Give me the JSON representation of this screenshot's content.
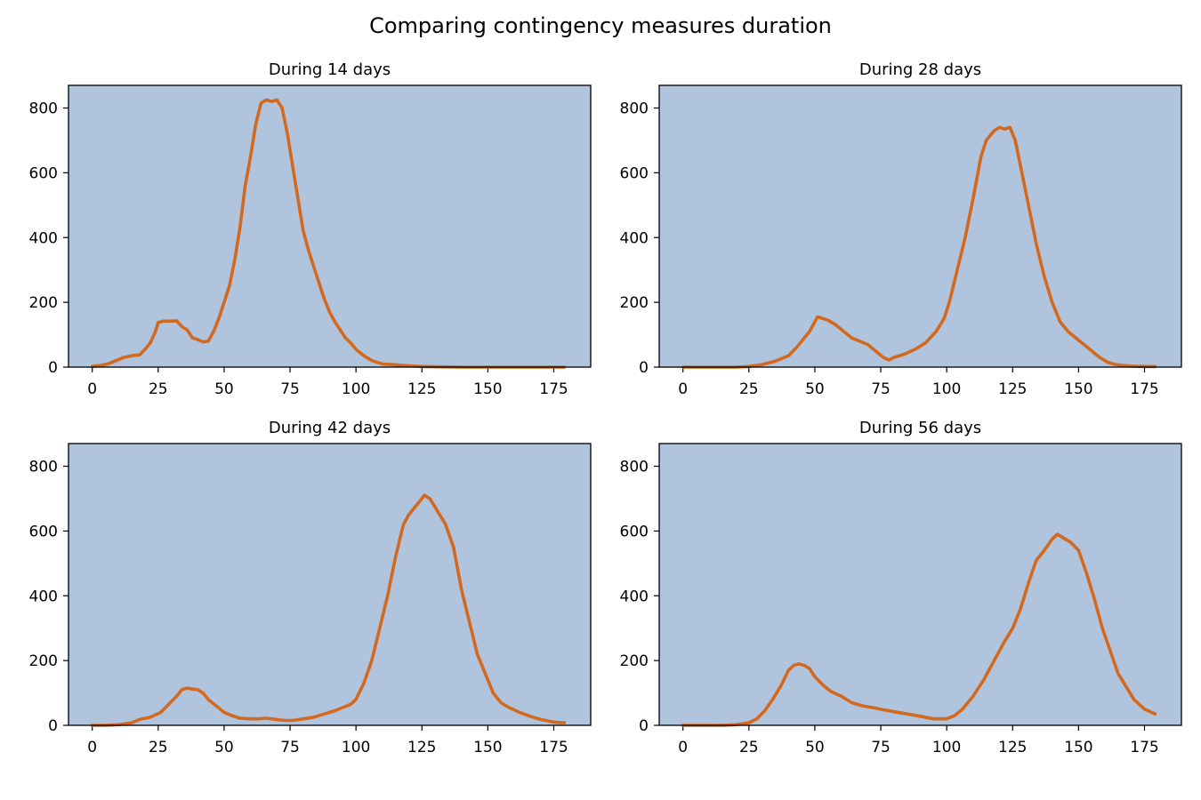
{
  "figure": {
    "title": "Comparing contingency measures duration",
    "plot_background": "#b0c4de",
    "line_color": "#d2691e"
  },
  "chart_data": [
    {
      "type": "line",
      "title": "During 14 days",
      "xlabel": "",
      "ylabel": "",
      "xlim": [
        -9,
        189
      ],
      "ylim": [
        0,
        870
      ],
      "xticks": [
        0,
        25,
        50,
        75,
        100,
        125,
        150,
        175
      ],
      "yticks": [
        0,
        200,
        400,
        600,
        800
      ],
      "grid": false,
      "x": [
        0,
        3,
        6,
        9,
        12,
        15,
        18,
        20,
        22,
        24,
        25,
        27,
        30,
        32,
        34,
        36,
        38,
        40,
        42,
        44,
        46,
        48,
        50,
        52,
        54,
        56,
        58,
        60,
        62,
        64,
        66,
        68,
        70,
        72,
        74,
        76,
        78,
        80,
        82,
        84,
        86,
        88,
        90,
        92,
        94,
        96,
        98,
        100,
        103,
        106,
        110,
        115,
        120,
        125,
        130,
        140,
        150,
        160,
        170,
        179
      ],
      "y": [
        2,
        5,
        10,
        20,
        30,
        35,
        38,
        55,
        75,
        110,
        138,
        142,
        142,
        143,
        125,
        115,
        90,
        85,
        78,
        80,
        110,
        150,
        200,
        250,
        330,
        430,
        560,
        650,
        750,
        815,
        825,
        820,
        825,
        800,
        720,
        620,
        520,
        420,
        360,
        310,
        260,
        210,
        170,
        140,
        115,
        90,
        75,
        55,
        35,
        20,
        10,
        7,
        4,
        2,
        1,
        0,
        0,
        0,
        0,
        0
      ]
    },
    {
      "type": "line",
      "title": "During 28 days",
      "xlabel": "",
      "ylabel": "",
      "xlim": [
        -9,
        189
      ],
      "ylim": [
        0,
        870
      ],
      "xticks": [
        0,
        25,
        50,
        75,
        100,
        125,
        150,
        175
      ],
      "yticks": [
        0,
        200,
        400,
        600,
        800
      ],
      "grid": false,
      "x": [
        0,
        5,
        10,
        15,
        20,
        25,
        30,
        35,
        40,
        43,
        46,
        48,
        50,
        51,
        53,
        55,
        58,
        61,
        64,
        67,
        70,
        73,
        76,
        78,
        80,
        84,
        88,
        92,
        96,
        99,
        101,
        104,
        107,
        110,
        113,
        115,
        118,
        120,
        122,
        124,
        126,
        128,
        131,
        134,
        137,
        140,
        143,
        146,
        149,
        152,
        155,
        158,
        161,
        164,
        167,
        170,
        175,
        179
      ],
      "y": [
        0,
        0,
        0,
        0,
        0,
        2,
        8,
        18,
        35,
        60,
        90,
        110,
        140,
        155,
        150,
        145,
        130,
        110,
        90,
        80,
        70,
        50,
        30,
        22,
        30,
        40,
        55,
        75,
        110,
        150,
        200,
        300,
        400,
        520,
        650,
        700,
        730,
        740,
        735,
        740,
        700,
        620,
        500,
        380,
        280,
        200,
        140,
        110,
        90,
        70,
        50,
        30,
        15,
        8,
        5,
        3,
        2,
        2
      ]
    },
    {
      "type": "line",
      "title": "During 42 days",
      "xlabel": "",
      "ylabel": "",
      "xlim": [
        -9,
        189
      ],
      "ylim": [
        0,
        870
      ],
      "xticks": [
        0,
        25,
        50,
        75,
        100,
        125,
        150,
        175
      ],
      "yticks": [
        0,
        200,
        400,
        600,
        800
      ],
      "grid": false,
      "x": [
        0,
        5,
        10,
        15,
        18,
        22,
        26,
        29,
        32,
        34,
        36,
        38,
        40,
        42,
        44,
        47,
        50,
        53,
        56,
        60,
        63,
        66,
        70,
        73,
        76,
        80,
        84,
        88,
        92,
        95,
        98,
        100,
        103,
        106,
        109,
        112,
        115,
        118,
        120,
        123,
        125,
        126,
        128,
        131,
        134,
        137,
        140,
        143,
        146,
        149,
        152,
        155,
        158,
        162,
        166,
        170,
        175,
        179
      ],
      "y": [
        0,
        0,
        2,
        8,
        18,
        25,
        40,
        65,
        90,
        110,
        115,
        112,
        110,
        100,
        80,
        60,
        40,
        30,
        22,
        20,
        20,
        22,
        18,
        15,
        15,
        20,
        25,
        35,
        45,
        55,
        65,
        80,
        130,
        200,
        300,
        400,
        520,
        620,
        650,
        680,
        700,
        710,
        700,
        660,
        620,
        550,
        420,
        320,
        220,
        160,
        100,
        70,
        55,
        40,
        28,
        18,
        10,
        8
      ]
    },
    {
      "type": "line",
      "title": "During 56 days",
      "xlabel": "",
      "ylabel": "",
      "xlim": [
        -9,
        189
      ],
      "ylim": [
        0,
        870
      ],
      "xticks": [
        0,
        25,
        50,
        75,
        100,
        125,
        150,
        175
      ],
      "yticks": [
        0,
        200,
        400,
        600,
        800
      ],
      "grid": false,
      "x": [
        0,
        5,
        10,
        15,
        20,
        25,
        28,
        31,
        34,
        37,
        40,
        42,
        44,
        46,
        48,
        50,
        53,
        56,
        60,
        64,
        68,
        72,
        76,
        80,
        85,
        90,
        95,
        100,
        103,
        106,
        110,
        114,
        118,
        122,
        125,
        128,
        131,
        134,
        137,
        140,
        142,
        144,
        147,
        150,
        153,
        156,
        159,
        162,
        165,
        168,
        171,
        175,
        179
      ],
      "y": [
        0,
        0,
        0,
        0,
        2,
        8,
        20,
        45,
        80,
        120,
        170,
        185,
        190,
        185,
        175,
        150,
        125,
        105,
        90,
        70,
        60,
        55,
        48,
        42,
        35,
        28,
        20,
        20,
        30,
        50,
        90,
        140,
        200,
        260,
        300,
        360,
        440,
        510,
        540,
        575,
        590,
        580,
        565,
        540,
        470,
        390,
        300,
        230,
        160,
        120,
        80,
        50,
        35
      ]
    }
  ]
}
